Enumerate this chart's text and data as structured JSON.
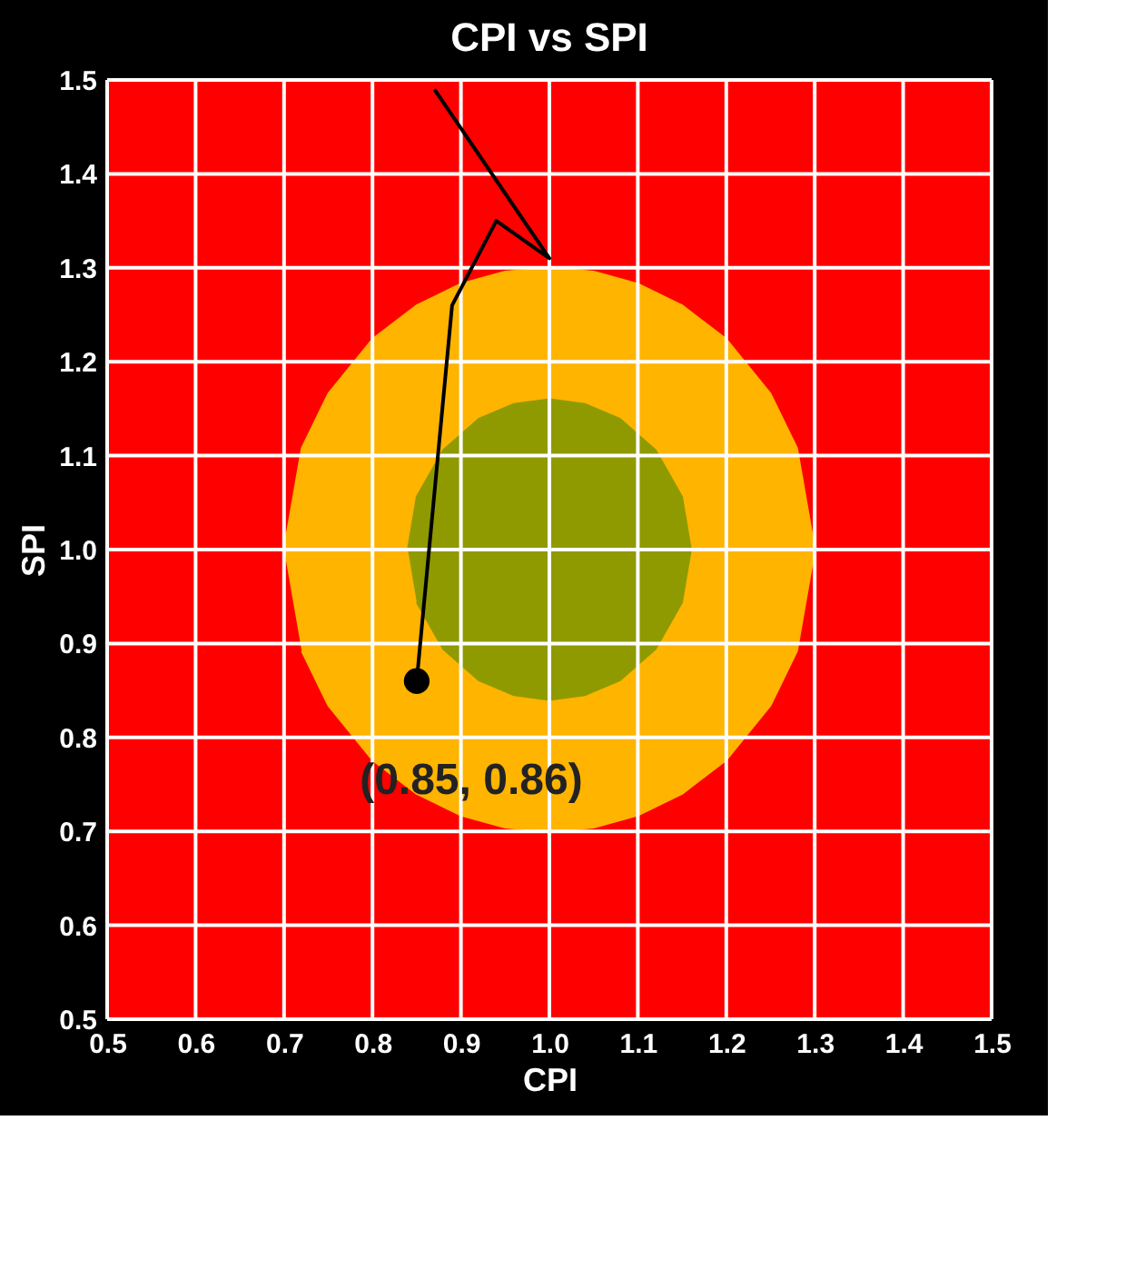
{
  "chart_data": {
    "type": "scatter",
    "title": "CPI vs SPI",
    "xlabel": "CPI",
    "ylabel": "SPI",
    "xlim": [
      0.5,
      1.5
    ],
    "ylim": [
      0.5,
      1.5
    ],
    "xticks": [
      0.5,
      0.6,
      0.7,
      0.8,
      0.9,
      {
        "value": 1.0,
        "label": "1.0"
      },
      1.1,
      1.2,
      1.3,
      1.4,
      1.5
    ],
    "yticks": [
      0.5,
      0.6,
      0.7,
      0.8,
      0.9,
      {
        "value": 1.0,
        "label": "1.0"
      },
      1.1,
      1.2,
      1.3,
      1.4,
      1.5
    ],
    "grid": true,
    "series": [
      {
        "type": "area",
        "color": "#ffb400",
        "x": [
          0.7,
          0.72,
          0.75,
          0.8,
          0.85,
          0.9,
          0.95,
          1.0,
          1.05,
          1.1,
          1.15,
          1.2,
          1.25,
          1.28,
          1.3,
          1.28,
          1.25,
          1.2,
          1.15,
          1.1,
          1.05,
          1.0,
          0.95,
          0.9,
          0.85,
          0.8,
          0.75,
          0.72
        ],
        "values": [
          1.0,
          1.108,
          1.166,
          1.224,
          1.26,
          1.283,
          1.296,
          1.3,
          1.296,
          1.283,
          1.26,
          1.224,
          1.166,
          1.108,
          1.0,
          0.892,
          0.834,
          0.776,
          0.74,
          0.717,
          0.704,
          0.7,
          0.704,
          0.717,
          0.74,
          0.776,
          0.834,
          0.892
        ]
      },
      {
        "type": "area",
        "color": "#8f9a00",
        "x": [
          0.84,
          0.85,
          0.88,
          0.92,
          0.96,
          1.0,
          1.04,
          1.08,
          1.12,
          1.15,
          1.16,
          1.15,
          1.12,
          1.08,
          1.04,
          1.0,
          0.96,
          0.92,
          0.88,
          0.85
        ],
        "values": [
          1.0,
          1.056,
          1.106,
          1.139,
          1.155,
          1.16,
          1.155,
          1.139,
          1.106,
          1.056,
          1.0,
          0.944,
          0.894,
          0.861,
          0.845,
          0.84,
          0.845,
          0.861,
          0.894,
          0.944
        ]
      },
      {
        "type": "line",
        "color": "#000000",
        "marker": "none",
        "x": [
          0.87,
          1.0,
          0.94,
          0.89,
          0.85
        ],
        "values": [
          1.49,
          1.31,
          1.35,
          1.26,
          0.86
        ]
      },
      {
        "color": "#000000",
        "marker": "circle",
        "x": [
          0.85
        ],
        "values": [
          0.86
        ]
      }
    ],
    "annotations": [
      {
        "text": "(0.85, 0.86)",
        "x": 0.85,
        "y": 0.86
      }
    ]
  }
}
